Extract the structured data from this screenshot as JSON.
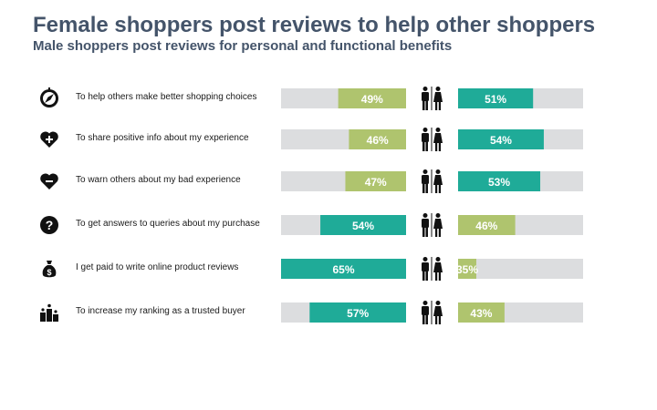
{
  "chart_data": {
    "type": "bar",
    "title": "Female shoppers post reviews to help other shoppers",
    "subtitle": "Male shoppers post reviews for personal and functional benefits",
    "categories": [
      "To help others make better shopping choices",
      "To share positive info about my experience",
      "To warn others about my bad experience",
      "To get answers to queries about my purchase",
      "I get paid to write online product reviews",
      "To increase my ranking as a trusted buyer"
    ],
    "series": [
      {
        "values": [
          49,
          46,
          47,
          54,
          65,
          57
        ]
      },
      {
        "values": [
          51,
          54,
          53,
          46,
          35,
          43
        ]
      }
    ],
    "xlim": [
      0,
      100
    ],
    "value_suffix": "%",
    "colors": {
      "green": "#afc46e",
      "teal": "#1fab98",
      "track": "#dcdddf",
      "label": "#ffffff"
    },
    "icons": [
      "compass-icon",
      "heart-plus-icon",
      "heart-minus-icon",
      "question-icon",
      "money-bag-icon",
      "ranking-podium-icon"
    ],
    "divider_icon": "male-female-icon"
  }
}
